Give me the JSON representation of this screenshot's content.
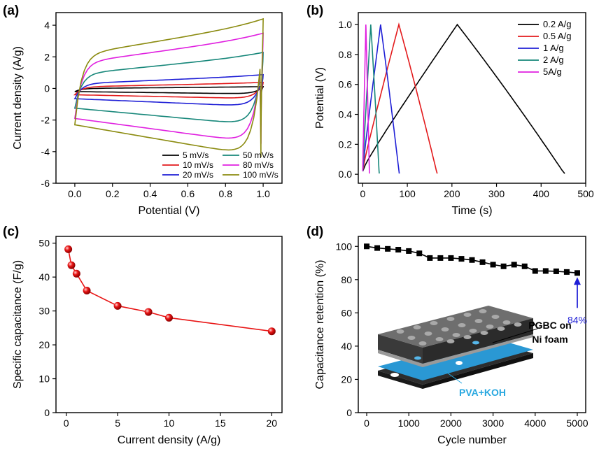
{
  "chart_data": [
    {
      "panel": "(a)",
      "type": "line",
      "xlabel": "Potential (V)",
      "ylabel": "Current density (A/g)",
      "xlim": [
        -0.1,
        1.1
      ],
      "ylim": [
        -6,
        4.8
      ],
      "xticks": [
        "0.0",
        "0.2",
        "0.4",
        "0.6",
        "0.8",
        "1.0"
      ],
      "xtick_values": [
        0,
        0.2,
        0.4,
        0.6,
        0.8,
        1.0
      ],
      "yticks": [
        "-6",
        "-4",
        "-2",
        "0",
        "2",
        "4"
      ],
      "ytick_values": [
        -6,
        -4,
        -2,
        0,
        2,
        4
      ],
      "series": [
        {
          "name": "5 mV/s",
          "color": "#000000",
          "upper": [
            0.0,
            0.1
          ],
          "lower": [
            -0.2,
            -0.35
          ]
        },
        {
          "name": "10 mV/s",
          "color": "#e31a1c",
          "upper": [
            0.1,
            0.35
          ],
          "lower": [
            -0.4,
            -0.65
          ]
        },
        {
          "name": "20 mV/s",
          "color": "#1f1fd6",
          "upper": [
            0.3,
            0.8
          ],
          "lower": [
            -0.65,
            -1.15
          ]
        },
        {
          "name": "50 mV/s",
          "color": "#17877a",
          "upper": [
            0.9,
            2.1
          ],
          "lower": [
            -1.25,
            -2.35
          ]
        },
        {
          "name": "80 mV/s",
          "color": "#e020e0",
          "upper": [
            1.6,
            3.25
          ],
          "lower": [
            -1.9,
            -3.5
          ]
        },
        {
          "name": "100 mV/s",
          "color": "#8b8b10",
          "upper": [
            2.1,
            4.1
          ],
          "lower": [
            -2.3,
            -4.35
          ]
        }
      ]
    },
    {
      "panel": "(b)",
      "type": "line",
      "xlabel": "Time (s)",
      "ylabel": "Potential (V)",
      "xlim": [
        -10,
        500
      ],
      "ylim": [
        -0.06,
        1.08
      ],
      "xticks": [
        "0",
        "100",
        "200",
        "300",
        "400",
        "500"
      ],
      "xtick_values": [
        0,
        100,
        200,
        300,
        400,
        500
      ],
      "yticks": [
        "0.0",
        "0.2",
        "0.4",
        "0.6",
        "0.8",
        "1.0"
      ],
      "ytick_values": [
        0,
        0.2,
        0.4,
        0.6,
        0.8,
        1.0
      ],
      "series": [
        {
          "name": "0.2 A/g",
          "color": "#000000",
          "t_peak": 212,
          "t_end": 453
        },
        {
          "name": "0.5 A/g",
          "color": "#e31a1c",
          "t_peak": 81,
          "t_end": 167
        },
        {
          "name": "1 A/g",
          "color": "#1f1fd6",
          "t_peak": 40,
          "t_end": 82
        },
        {
          "name": "2 A/g",
          "color": "#17877a",
          "t_peak": 18,
          "t_end": 37
        },
        {
          "name": "5A/g",
          "color": "#e020e0",
          "t_peak": 7,
          "t_end": 15
        }
      ]
    },
    {
      "panel": "(c)",
      "type": "scatter",
      "xlabel": "Current density (A/g)",
      "ylabel": "Specific capacitance (F/g)",
      "xlim": [
        -1,
        21
      ],
      "ylim": [
        0,
        52
      ],
      "xticks": [
        "0",
        "5",
        "10",
        "15",
        "20"
      ],
      "xtick_values": [
        0,
        5,
        10,
        15,
        20
      ],
      "yticks": [
        "0",
        "10",
        "20",
        "30",
        "40",
        "50"
      ],
      "ytick_values": [
        0,
        10,
        20,
        30,
        40,
        50
      ],
      "marker_color": "#e81414",
      "x": [
        0.2,
        0.5,
        1,
        2,
        5,
        8,
        10,
        20
      ],
      "y": [
        48.2,
        43.5,
        41,
        36,
        31.5,
        29.7,
        28,
        24
      ]
    },
    {
      "panel": "(d)",
      "type": "line",
      "xlabel": "Cycle number",
      "ylabel": "Capacitance retention (%)",
      "xlim": [
        -200,
        5200
      ],
      "ylim": [
        0,
        106
      ],
      "xticks": [
        "0",
        "1000",
        "2000",
        "3000",
        "4000",
        "5000"
      ],
      "xtick_values": [
        0,
        1000,
        2000,
        3000,
        4000,
        5000
      ],
      "yticks": [
        "0",
        "20",
        "40",
        "60",
        "80",
        "100"
      ],
      "ytick_values": [
        0,
        20,
        40,
        60,
        80,
        100
      ],
      "marker_color": "#000000",
      "x": [
        0,
        250,
        500,
        750,
        1000,
        1250,
        1500,
        1750,
        2000,
        2250,
        2500,
        2750,
        3000,
        3250,
        3500,
        3750,
        4000,
        4250,
        4500,
        4750,
        5000
      ],
      "y": [
        100,
        99,
        98.5,
        98,
        97.2,
        95.8,
        93,
        93,
        93,
        92.5,
        91.8,
        90.5,
        89,
        88,
        89,
        88,
        85.2,
        85.2,
        85,
        84.6,
        84
      ],
      "annotation": {
        "text": "84%",
        "x": 5000,
        "y": 84,
        "color": "#1f1fd6"
      },
      "inset": {
        "label_top": "PGBC on",
        "label_top2": "Ni foam",
        "label_bottom": "PVA+KOH",
        "label_bottom_color": "#29a8e0"
      }
    }
  ],
  "panels": {
    "a": {
      "label": "(a)"
    },
    "b": {
      "label": "(b)"
    },
    "c": {
      "label": "(c)"
    },
    "d": {
      "label": "(d)"
    }
  }
}
